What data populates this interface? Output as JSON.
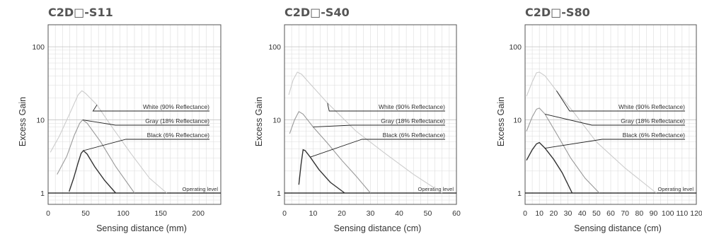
{
  "chart_data": [
    {
      "type": "line",
      "title": "C2D□-S11",
      "xlabel": "Sensing distance (mm)",
      "ylabel": "Excess Gain",
      "xlim": [
        0,
        230
      ],
      "ylim": [
        0.7,
        200
      ],
      "yscale": "log",
      "xticks": [
        0,
        50,
        100,
        150,
        200
      ],
      "yticks": [
        1,
        10,
        100
      ],
      "operating_level_label": "Operating level",
      "grid": true,
      "series": [
        {
          "name": "White (90% Reflectance)",
          "color": "#cccccc",
          "points": [
            [
              3,
              3.6
            ],
            [
              15,
              6
            ],
            [
              30,
              13
            ],
            [
              40,
              22
            ],
            [
              45,
              25
            ],
            [
              50,
              23
            ],
            [
              65,
              16
            ],
            [
              85,
              8
            ],
            [
              110,
              3.5
            ],
            [
              135,
              1.6
            ],
            [
              158,
              1
            ]
          ]
        },
        {
          "name": "Gray (18% Reflectance)",
          "color": "#999999",
          "points": [
            [
              12,
              1.8
            ],
            [
              25,
              3.2
            ],
            [
              35,
              6.2
            ],
            [
              42,
              9
            ],
            [
              46,
              10
            ],
            [
              52,
              9
            ],
            [
              70,
              5
            ],
            [
              90,
              2.3
            ],
            [
              115,
              1
            ]
          ]
        },
        {
          "name": "Black (6% Reflectance)",
          "color": "#333333",
          "points": [
            [
              28,
              1.05
            ],
            [
              34,
              1.6
            ],
            [
              40,
              2.6
            ],
            [
              44,
              3.5
            ],
            [
              47,
              3.8
            ],
            [
              52,
              3.4
            ],
            [
              62,
              2.3
            ],
            [
              75,
              1.5
            ],
            [
              90,
              1
            ]
          ]
        }
      ]
    },
    {
      "type": "line",
      "title": "C2D□-S40",
      "xlabel": "Sensing distance (cm)",
      "ylabel": "Excess Gain",
      "xlim": [
        0,
        60
      ],
      "ylim": [
        0.7,
        200
      ],
      "yscale": "log",
      "xticks": [
        0,
        10,
        20,
        30,
        40,
        50,
        60
      ],
      "yticks": [
        1,
        10,
        100
      ],
      "operating_level_label": "Operating level",
      "grid": true,
      "series": [
        {
          "name": "White (90% Reflectance)",
          "color": "#cccccc",
          "points": [
            [
              1.5,
              22
            ],
            [
              3,
              35
            ],
            [
              4.5,
              45
            ],
            [
              6,
              42
            ],
            [
              9,
              31
            ],
            [
              15,
              17
            ],
            [
              25,
              7
            ],
            [
              35,
              3.5
            ],
            [
              45,
              1.8
            ],
            [
              55,
              1
            ]
          ]
        },
        {
          "name": "Gray (18% Reflectance)",
          "color": "#999999",
          "points": [
            [
              1.8,
              6.5
            ],
            [
              3.5,
              10
            ],
            [
              5,
              13
            ],
            [
              6.5,
              12
            ],
            [
              10,
              8
            ],
            [
              15,
              4.8
            ],
            [
              20,
              2.8
            ],
            [
              25,
              1.7
            ],
            [
              30,
              1
            ]
          ]
        },
        {
          "name": "Black (6% Reflectance)",
          "color": "#333333",
          "points": [
            [
              5,
              1.3
            ],
            [
              5.8,
              2.5
            ],
            [
              6.5,
              3.9
            ],
            [
              7.2,
              3.8
            ],
            [
              9,
              3.1
            ],
            [
              12,
              2.1
            ],
            [
              16,
              1.4
            ],
            [
              21,
              1
            ]
          ]
        }
      ]
    },
    {
      "type": "line",
      "title": "C2D□-S80",
      "xlabel": "Sensing distance (cm)",
      "ylabel": "Excess Gain",
      "xlim": [
        0,
        120
      ],
      "ylim": [
        0.7,
        200
      ],
      "yscale": "log",
      "xticks": [
        0,
        10,
        20,
        30,
        40,
        50,
        60,
        70,
        80,
        90,
        100,
        110,
        120
      ],
      "xtick_labels": [
        "0",
        "10",
        "20",
        "30",
        "40",
        "50",
        "60",
        "70",
        "80",
        "90",
        "100",
        "110",
        "120"
      ],
      "yticks": [
        1,
        10,
        100
      ],
      "operating_level_label": "Operating level",
      "grid": true,
      "series": [
        {
          "name": "White (90% Reflectance)",
          "color": "#cccccc",
          "points": [
            [
              1,
              21
            ],
            [
              5,
              33
            ],
            [
              8,
              44
            ],
            [
              10,
              45
            ],
            [
              14,
              40
            ],
            [
              22,
              25
            ],
            [
              35,
              12
            ],
            [
              50,
              5
            ],
            [
              70,
              2.2
            ],
            [
              92,
              1
            ]
          ]
        },
        {
          "name": "Gray (18% Reflectance)",
          "color": "#999999",
          "points": [
            [
              1,
              7
            ],
            [
              5,
              11
            ],
            [
              8,
              14
            ],
            [
              10,
              14.5
            ],
            [
              14,
              12
            ],
            [
              22,
              6.5
            ],
            [
              32,
              3
            ],
            [
              42,
              1.6
            ],
            [
              52,
              1
            ]
          ]
        },
        {
          "name": "Black (6% Reflectance)",
          "color": "#333333",
          "points": [
            [
              1,
              2.8
            ],
            [
              5,
              3.9
            ],
            [
              8,
              4.7
            ],
            [
              10,
              4.9
            ],
            [
              14,
              4.1
            ],
            [
              20,
              2.9
            ],
            [
              26,
              1.9
            ],
            [
              33,
              1
            ]
          ]
        }
      ]
    }
  ]
}
